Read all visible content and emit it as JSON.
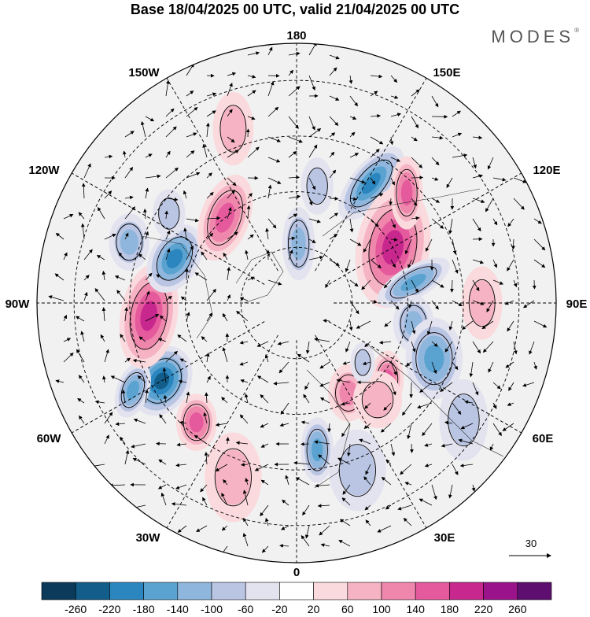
{
  "title": "Base 18/04/2025 00 UTC, valid 21/04/2025 00 UTC",
  "brand": "MODES",
  "brand_mark": "®",
  "longitude_labels": {
    "top": "180",
    "top_left": "150W",
    "top_right": "150E",
    "upper_left": "120W",
    "upper_right": "120E",
    "left": "90W",
    "right": "90E",
    "lower_left": "60W",
    "lower_right": "60E",
    "bottom_left": "30W",
    "bottom_right": "30E",
    "bottom": "0"
  },
  "reference_vector": {
    "label": "30"
  },
  "colorbar": {
    "colors": [
      "#0b3a5a",
      "#125d8a",
      "#2b86bf",
      "#5aa3d1",
      "#8fb6dc",
      "#b9c5e3",
      "#e3e3f0",
      "#ffffff",
      "#fadadd",
      "#f5b3c3",
      "#ef87ad",
      "#e55a9d",
      "#c8278e",
      "#9b138a",
      "#5e0e6e"
    ],
    "ticks": [
      "-260",
      "-220",
      "-180",
      "-140",
      "-100",
      "-60",
      "-20",
      "20",
      "60",
      "100",
      "140",
      "180",
      "220",
      "260"
    ]
  },
  "anomaly_blobs": [
    {
      "lat": 52,
      "lon": 148,
      "rx": 10,
      "ry": 22,
      "rot": 40,
      "value": -200
    },
    {
      "lat": 58,
      "lon": 170,
      "rx": 8,
      "ry": 14,
      "rot": 0,
      "value": -60
    },
    {
      "lat": 74,
      "lon": 178,
      "rx": 8,
      "ry": 18,
      "rot": 0,
      "value": -100
    },
    {
      "lat": 60,
      "lon": 120,
      "rx": 18,
      "ry": 30,
      "rot": 10,
      "value": 200
    },
    {
      "lat": 48,
      "lon": 135,
      "rx": 8,
      "ry": 18,
      "rot": 0,
      "value": 140
    },
    {
      "lat": 58,
      "lon": 100,
      "rx": 8,
      "ry": 20,
      "rot": 60,
      "value": -160
    },
    {
      "lat": 58,
      "lon": 80,
      "rx": 10,
      "ry": 14,
      "rot": 0,
      "value": -100
    },
    {
      "lat": 50,
      "lon": 68,
      "rx": 14,
      "ry": 20,
      "rot": 0,
      "value": -140
    },
    {
      "lat": 58,
      "lon": 50,
      "rx": 8,
      "ry": 14,
      "rot": 0,
      "value": 160
    },
    {
      "lat": 62,
      "lon": 30,
      "rx": 10,
      "ry": 14,
      "rot": 0,
      "value": 100
    },
    {
      "lat": 50,
      "lon": 8,
      "rx": 8,
      "ry": 16,
      "rot": 0,
      "value": -160
    },
    {
      "lat": 56,
      "lon": 40,
      "rx": 12,
      "ry": 14,
      "rot": 0,
      "value": 60
    },
    {
      "lat": 66,
      "lon": 48,
      "rx": 6,
      "ry": 10,
      "rot": 0,
      "value": -80
    },
    {
      "lat": 48,
      "lon": -40,
      "rx": 10,
      "ry": 14,
      "rot": 0,
      "value": 160
    },
    {
      "lat": 48,
      "lon": -60,
      "rx": 14,
      "ry": 18,
      "rot": 30,
      "value": -240
    },
    {
      "lat": 40,
      "lon": -62,
      "rx": 8,
      "ry": 14,
      "rot": 20,
      "value": -140
    },
    {
      "lat": 50,
      "lon": -85,
      "rx": 14,
      "ry": 26,
      "rot": 10,
      "value": 180
    },
    {
      "lat": 55,
      "lon": -110,
      "rx": 12,
      "ry": 18,
      "rot": 30,
      "value": -180
    },
    {
      "lat": 42,
      "lon": -110,
      "rx": 10,
      "ry": 14,
      "rot": 0,
      "value": -100
    },
    {
      "lat": 60,
      "lon": -140,
      "rx": 12,
      "ry": 22,
      "rot": 20,
      "value": 160
    },
    {
      "lat": 40,
      "lon": -160,
      "rx": 10,
      "ry": 18,
      "rot": 0,
      "value": 60
    },
    {
      "lat": 48,
      "lon": -125,
      "rx": 8,
      "ry": 12,
      "rot": 0,
      "value": -60
    },
    {
      "lat": 40,
      "lon": 90,
      "rx": 10,
      "ry": 18,
      "rot": 0,
      "value": 60
    },
    {
      "lat": 40,
      "lon": -20,
      "rx": 14,
      "ry": 22,
      "rot": 0,
      "value": 60
    },
    {
      "lat": 42,
      "lon": 20,
      "rx": 14,
      "ry": 20,
      "rot": 0,
      "value": -60
    },
    {
      "lat": 35,
      "lon": 55,
      "rx": 12,
      "ry": 20,
      "rot": 0,
      "value": -60
    }
  ]
}
